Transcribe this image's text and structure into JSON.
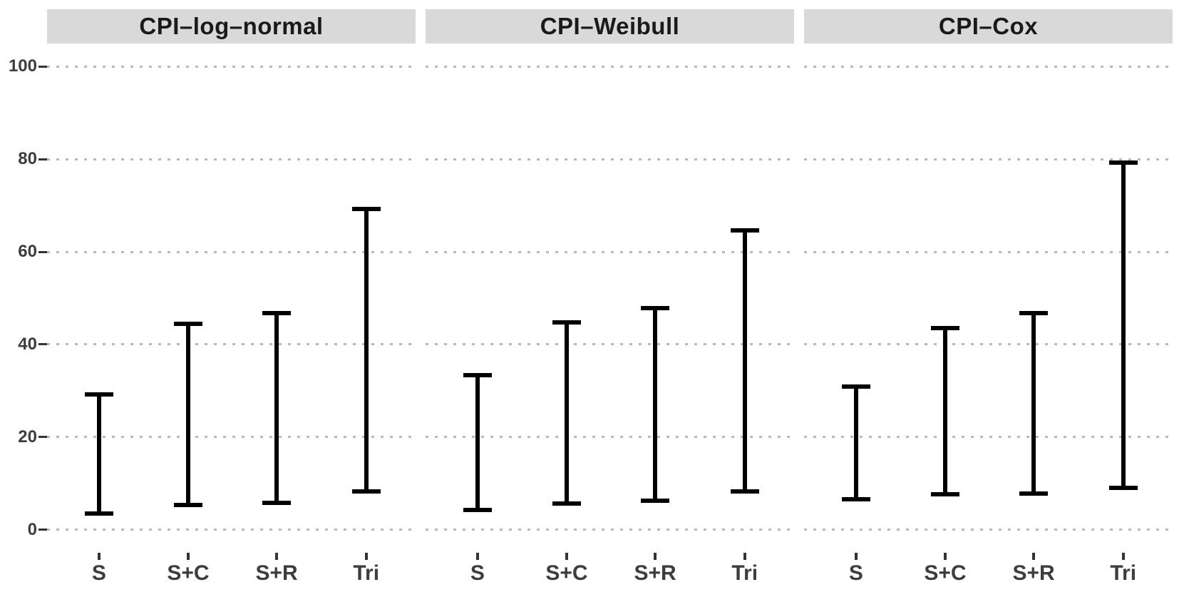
{
  "chart_data": {
    "type": "errorbar",
    "title": "",
    "legend": "none",
    "grid": "horizontal dotted",
    "ylim": [
      0,
      100
    ],
    "y_expand": 5,
    "yticks": [
      0,
      20,
      40,
      60,
      80,
      100
    ],
    "categories": [
      "S",
      "S+C",
      "S+R",
      "Tri"
    ],
    "category_centers_pct": [
      14.1,
      38.3,
      62.3,
      86.6
    ],
    "facets": [
      {
        "label": "CPI–log–normal",
        "ranges": [
          {
            "category": "S",
            "low": 3.5,
            "high": 29.2
          },
          {
            "category": "S+C",
            "low": 5.3,
            "high": 44.5
          },
          {
            "category": "S+R",
            "low": 5.8,
            "high": 46.8
          },
          {
            "category": "Tri",
            "low": 8.3,
            "high": 69.3
          }
        ]
      },
      {
        "label": "CPI–Weibull",
        "ranges": [
          {
            "category": "S",
            "low": 4.2,
            "high": 33.4
          },
          {
            "category": "S+C",
            "low": 5.7,
            "high": 44.8
          },
          {
            "category": "S+R",
            "low": 6.2,
            "high": 47.8
          },
          {
            "category": "Tri",
            "low": 8.2,
            "high": 64.7
          }
        ]
      },
      {
        "label": "CPI–Cox",
        "ranges": [
          {
            "category": "S",
            "low": 6.5,
            "high": 30.9
          },
          {
            "category": "S+C",
            "low": 7.6,
            "high": 43.5
          },
          {
            "category": "S+R",
            "low": 7.8,
            "high": 46.7
          },
          {
            "category": "Tri",
            "low": 9.0,
            "high": 79.3
          }
        ]
      }
    ]
  },
  "colors": {
    "background": "#ffffff",
    "strip_background": "#d9d9d9",
    "strip_text": "#1a1a1a",
    "axis_text": "#3d3d3d",
    "tick_mark": "#333333",
    "grid_dot": "#b9b9b9",
    "bar": "#000000"
  }
}
